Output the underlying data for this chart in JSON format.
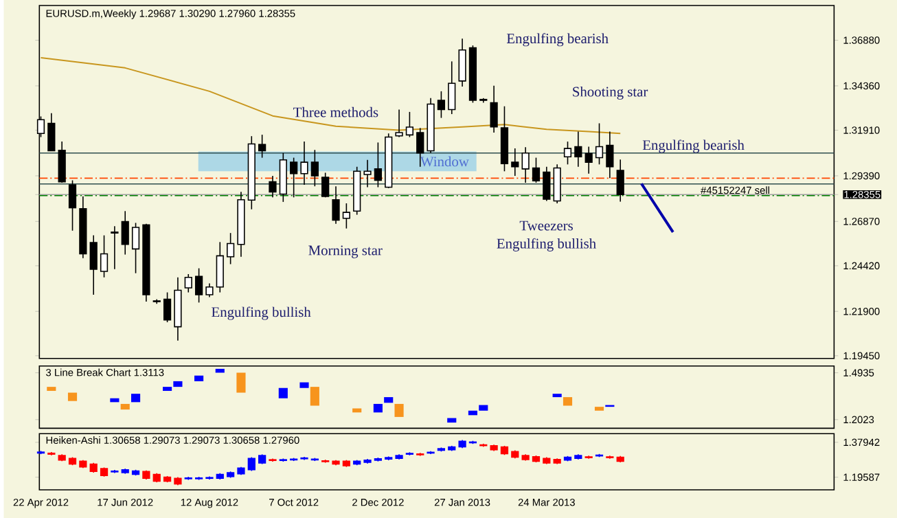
{
  "chart_data": [
    {
      "type": "candlestick",
      "title": "EURUSD.m,Weekly  1.29687 1.30290 1.27960 1.28355",
      "color": "#000000",
      "x": [
        "2012-04-22",
        "2012-04-29",
        "2012-05-06",
        "2012-05-13",
        "2012-05-20",
        "2012-05-27",
        "2012-06-03",
        "2012-06-10",
        "2012-06-17",
        "2012-06-24",
        "2012-07-01",
        "2012-07-08",
        "2012-07-15",
        "2012-07-22",
        "2012-07-29",
        "2012-08-05",
        "2012-08-12",
        "2012-08-19",
        "2012-08-26",
        "2012-09-02",
        "2012-09-09",
        "2012-09-16",
        "2012-09-23",
        "2012-09-30",
        "2012-10-07",
        "2012-10-14",
        "2012-10-21",
        "2012-10-28",
        "2012-11-04",
        "2012-11-11",
        "2012-11-18",
        "2012-11-25",
        "2012-12-02",
        "2012-12-09",
        "2012-12-16",
        "2012-12-23",
        "2012-12-30",
        "2013-01-06",
        "2013-01-13",
        "2013-01-20",
        "2013-01-27",
        "2013-02-03",
        "2013-02-10",
        "2013-02-17",
        "2013-02-24",
        "2013-03-03",
        "2013-03-10",
        "2013-03-17",
        "2013-03-24",
        "2013-03-31",
        "2013-04-07",
        "2013-04-14",
        "2013-04-21",
        "2013-04-28",
        "2013-05-05",
        "2013-05-12"
      ],
      "ohlc": [
        [
          1.3173,
          1.3267,
          1.3153,
          1.3249
        ],
        [
          1.3229,
          1.3285,
          1.3077,
          1.3077
        ],
        [
          1.308,
          1.3128,
          1.2901,
          1.2906
        ],
        [
          1.2889,
          1.2914,
          1.2636,
          1.2762
        ],
        [
          1.2757,
          1.2826,
          1.2484,
          1.2508
        ],
        [
          1.257,
          1.261,
          1.2282,
          1.2423
        ],
        [
          1.2411,
          1.261,
          1.2378,
          1.2508
        ],
        [
          1.2623,
          1.2661,
          1.2423,
          1.2628
        ],
        [
          1.2686,
          1.2744,
          1.2504,
          1.256
        ],
        [
          1.2535,
          1.2679,
          1.2401,
          1.2654
        ],
        [
          1.2668,
          1.2674,
          1.2244,
          1.2282
        ],
        [
          1.2244,
          1.2257,
          1.2232,
          1.2248
        ],
        [
          1.2257,
          1.2295,
          1.213,
          1.2143
        ],
        [
          1.2105,
          1.2378,
          1.2029,
          1.2307
        ],
        [
          1.232,
          1.2396,
          1.2295,
          1.2378
        ],
        [
          1.2383,
          1.2428,
          1.2239,
          1.2282
        ],
        [
          1.2282,
          1.2345,
          1.2269,
          1.2325
        ],
        [
          1.2325,
          1.2573,
          1.2295,
          1.2497
        ],
        [
          1.2492,
          1.2623,
          1.2451,
          1.2565
        ],
        [
          1.256,
          1.285,
          1.2492,
          1.2807
        ],
        [
          1.2805,
          1.3158,
          1.2754,
          1.3115
        ],
        [
          1.3112,
          1.3166,
          1.3039,
          1.3077
        ],
        [
          1.2906,
          1.2939,
          1.282,
          1.285
        ],
        [
          1.2838,
          1.3065,
          1.2795,
          1.3027
        ],
        [
          1.3014,
          1.3039,
          1.282,
          1.2951
        ],
        [
          1.2951,
          1.3128,
          1.2889,
          1.3014
        ],
        [
          1.3014,
          1.3082,
          1.2881,
          1.2939
        ],
        [
          1.2931,
          1.2956,
          1.282,
          1.2825
        ],
        [
          1.2807,
          1.2881,
          1.2674,
          1.2694
        ],
        [
          1.2704,
          1.2787,
          1.2648,
          1.2737
        ],
        [
          1.2744,
          1.2989,
          1.2724,
          1.2964
        ],
        [
          1.2946,
          1.3027,
          1.2876,
          1.2964
        ],
        [
          1.2977,
          1.3123,
          1.2876,
          1.2914
        ],
        [
          1.2876,
          1.3173,
          1.2871,
          1.3153
        ],
        [
          1.316,
          1.3305,
          1.3153,
          1.3178
        ],
        [
          1.3165,
          1.3292,
          1.3153,
          1.3208
        ],
        [
          1.3178,
          1.3203,
          1.2989,
          1.3065
        ],
        [
          1.3077,
          1.3368,
          1.3065,
          1.3335
        ],
        [
          1.3356,
          1.3406,
          1.3259,
          1.3305
        ],
        [
          1.3305,
          1.3571,
          1.328,
          1.345
        ],
        [
          1.3463,
          1.3697,
          1.3432,
          1.3634
        ],
        [
          1.3646,
          1.3659,
          1.3343,
          1.3356
        ],
        [
          1.3361,
          1.3368,
          1.3343,
          1.3356
        ],
        [
          1.3343,
          1.3437,
          1.3178,
          1.3209
        ],
        [
          1.3204,
          1.3323,
          1.2964,
          1.3006
        ],
        [
          1.3014,
          1.309,
          1.2939,
          1.2989
        ],
        [
          1.2977,
          1.3097,
          1.2901,
          1.3065
        ],
        [
          1.2982,
          1.3039,
          1.2901,
          1.2911
        ],
        [
          1.2959,
          1.2989,
          1.28,
          1.281
        ],
        [
          1.28,
          1.3002,
          1.2787,
          1.2982
        ],
        [
          1.3044,
          1.3128,
          1.3002,
          1.309
        ],
        [
          1.31,
          1.3183,
          1.2989,
          1.3044
        ],
        [
          1.3062,
          1.31,
          1.2951,
          1.3014
        ],
        [
          1.3039,
          1.3229,
          1.3002,
          1.31
        ],
        [
          1.3107,
          1.3183,
          1.2926,
          1.2989
        ],
        [
          1.29687,
          1.3029,
          1.2796,
          1.28355
        ]
      ],
      "series": [
        {
          "type": "line",
          "color": "#c8961e",
          "x": [
            "2012-04-22",
            "2012-06-17",
            "2012-08-12",
            "2012-09-23",
            "2012-11-04",
            "2012-12-16",
            "2013-01-27",
            "2013-02-24",
            "2013-03-24",
            "2013-04-21",
            "2013-05-12"
          ],
          "values": [
            1.3591,
            1.3535,
            1.3406,
            1.327,
            1.3213,
            1.3191,
            1.3209,
            1.3222,
            1.3196,
            1.3183,
            1.3173
          ]
        },
        {
          "type": "line",
          "color": "#0000aa",
          "x": [
            "2013-05-26",
            "2013-06-16"
          ],
          "values": [
            1.2896,
            1.2628
          ]
        }
      ],
      "xlim": [
        "2012-04-21",
        "2013-10-01"
      ],
      "ylim": [
        1.193,
        1.388
      ],
      "yticks": [
        {
          "value": 1.3688,
          "label": "1.36880"
        },
        {
          "value": 1.3436,
          "label": "1.34360"
        },
        {
          "value": 1.3191,
          "label": "1.31910"
        },
        {
          "value": 1.2939,
          "label": "1.29390"
        },
        1.28355,
        {
          "value": 1.2687,
          "label": "1.26870"
        },
        {
          "value": 1.2442,
          "label": "1.24420"
        },
        {
          "value": 1.219,
          "label": "1.21900"
        },
        {
          "value": 1.1945,
          "label": "1.19450"
        }
      ],
      "tick_labels": "y",
      "bands": [
        {
          "axis": "y",
          "from": 1.2964,
          "to": 1.3073,
          "label": "Window",
          "color": "#add8e6"
        }
      ],
      "ref_lines": [
        {
          "axis": "y",
          "value": 1.3065,
          "color": "#2f4f4f"
        },
        {
          "axis": "y",
          "value": 1.2894,
          "color": "#2f4f4f"
        },
        {
          "axis": "y",
          "value": 1.2926,
          "color": "#ff4500",
          "line_style": "dashed"
        },
        {
          "axis": "y",
          "value": 1.283,
          "color": "#008000",
          "line_style": "dashed",
          "label": "#45152247 sell"
        },
        {
          "axis": "y",
          "value": 1.28355,
          "color": "#a0a0a0"
        }
      ],
      "annotations": [
        "Engulfing bullish",
        "Morning star",
        "Three methods",
        "Engulfing bearish",
        "Shooting star",
        "Engulfing bearish",
        "Tweezers",
        "Engulfing bullish"
      ]
    },
    {
      "type": "bar",
      "title": "3 Line Break Chart 1.3113",
      "x": [
        "2012-04-29",
        "2012-05-13",
        "2012-06-10",
        "2012-06-17",
        "2012-06-24",
        "2012-07-15",
        "2012-07-22",
        "2012-08-05",
        "2012-08-19",
        "2012-09-02",
        "2012-09-30",
        "2012-10-14",
        "2012-10-21",
        "2012-11-18",
        "2012-12-02",
        "2012-12-09",
        "2012-12-16",
        "2013-01-20",
        "2013-02-03",
        "2013-02-10",
        "2013-03-31",
        "2013-04-07",
        "2013-04-28",
        "2013-05-05"
      ],
      "base": [
        1.381,
        1.318,
        1.311,
        1.265,
        1.311,
        1.381,
        1.406,
        1.441,
        1.494,
        1.37,
        1.335,
        1.399,
        1.289,
        1.247,
        1.247,
        1.307,
        1.219,
        1.184,
        1.23,
        1.258,
        1.342,
        1.289,
        1.258,
        1.282
      ],
      "values": [
        0.025,
        0.052,
        0.024,
        0.035,
        0.052,
        0.025,
        0.035,
        0.035,
        0.024,
        0.124,
        0.064,
        0.035,
        0.117,
        0.025,
        0.053,
        0.035,
        0.081,
        0.028,
        0.028,
        0.035,
        0.021,
        0.053,
        0.024,
        0.011
      ],
      "colors": [
        "#f7941d",
        "#f7941d",
        "#0000ff",
        "#f7941d",
        "#0000ff",
        "#0000ff",
        "#0000ff",
        "#0000ff",
        "#0000ff",
        "#f7941d",
        "#0000ff",
        "#0000ff",
        "#f7941d",
        "#f7941d",
        "#0000ff",
        "#0000ff",
        "#f7941d",
        "#0000ff",
        "#0000ff",
        "#0000ff",
        "#0000ff",
        "#f7941d",
        "#f7941d",
        "#0000ff"
      ],
      "xlim": [
        "2012-04-21",
        "2013-10-01"
      ],
      "ylim": [
        1.1488,
        1.5357
      ],
      "yticks": [
        1.4935,
        1.2023
      ],
      "tick_labels": "y"
    },
    {
      "type": "candlestick",
      "title": "Heiken-Ashi 1.30658 1.29073 1.29073 1.30658 1.27960",
      "x": [
        "2012-04-22",
        "2012-04-29",
        "2012-05-06",
        "2012-05-13",
        "2012-05-20",
        "2012-05-27",
        "2012-06-03",
        "2012-06-10",
        "2012-06-17",
        "2012-06-24",
        "2012-07-01",
        "2012-07-08",
        "2012-07-15",
        "2012-07-22",
        "2012-07-29",
        "2012-08-05",
        "2012-08-12",
        "2012-08-19",
        "2012-08-26",
        "2012-09-02",
        "2012-09-09",
        "2012-09-16",
        "2012-09-23",
        "2012-09-30",
        "2012-10-07",
        "2012-10-14",
        "2012-10-21",
        "2012-10-28",
        "2012-11-04",
        "2012-11-11",
        "2012-11-18",
        "2012-11-25",
        "2012-12-02",
        "2012-12-09",
        "2012-12-16",
        "2012-12-23",
        "2012-12-30",
        "2013-01-06",
        "2013-01-13",
        "2013-01-20",
        "2013-01-27",
        "2013-02-03",
        "2013-02-10",
        "2013-02-17",
        "2013-02-24",
        "2013-03-03",
        "2013-03-10",
        "2013-03-17",
        "2013-03-24",
        "2013-03-31",
        "2013-04-07",
        "2013-04-14",
        "2013-04-21",
        "2013-04-28",
        "2013-05-05",
        "2013-05-12"
      ],
      "ohlc": [
        [
          1.323,
          1.334,
          1.317,
          1.328
        ],
        [
          1.322,
          1.328,
          1.311,
          1.317
        ],
        [
          1.31,
          1.316,
          1.28,
          1.286
        ],
        [
          1.295,
          1.301,
          1.259,
          1.265
        ],
        [
          1.28,
          1.286,
          1.244,
          1.25
        ],
        [
          1.265,
          1.271,
          1.22,
          1.226
        ],
        [
          1.241,
          1.247,
          1.199,
          1.205
        ],
        [
          1.224,
          1.234,
          1.218,
          1.228
        ],
        [
          1.22,
          1.241,
          1.214,
          1.235
        ],
        [
          1.211,
          1.235,
          1.205,
          1.229
        ],
        [
          1.226,
          1.232,
          1.184,
          1.19
        ],
        [
          1.211,
          1.217,
          1.169,
          1.175
        ],
        [
          1.196,
          1.202,
          1.169,
          1.175
        ],
        [
          1.19,
          1.196,
          1.154,
          1.16
        ],
        [
          1.188,
          1.198,
          1.182,
          1.192
        ],
        [
          1.188,
          1.198,
          1.182,
          1.192
        ],
        [
          1.19,
          1.2,
          1.184,
          1.194
        ],
        [
          1.19,
          1.217,
          1.184,
          1.211
        ],
        [
          1.199,
          1.226,
          1.193,
          1.22
        ],
        [
          1.214,
          1.25,
          1.208,
          1.244
        ],
        [
          1.235,
          1.301,
          1.229,
          1.295
        ],
        [
          1.271,
          1.316,
          1.265,
          1.31
        ],
        [
          1.288,
          1.294,
          1.278,
          1.284
        ],
        [
          1.284,
          1.294,
          1.278,
          1.288
        ],
        [
          1.287,
          1.297,
          1.281,
          1.291
        ],
        [
          1.293,
          1.303,
          1.287,
          1.297
        ],
        [
          1.287,
          1.297,
          1.281,
          1.291
        ],
        [
          1.282,
          1.288,
          1.272,
          1.278
        ],
        [
          1.28,
          1.286,
          1.259,
          1.265
        ],
        [
          1.28,
          1.286,
          1.25,
          1.256
        ],
        [
          1.265,
          1.286,
          1.259,
          1.28
        ],
        [
          1.274,
          1.292,
          1.268,
          1.286
        ],
        [
          1.285,
          1.299,
          1.279,
          1.293
        ],
        [
          1.291,
          1.305,
          1.285,
          1.299
        ],
        [
          1.295,
          1.316,
          1.289,
          1.31
        ],
        [
          1.317,
          1.327,
          1.311,
          1.321
        ],
        [
          1.318,
          1.324,
          1.308,
          1.314
        ],
        [
          1.323,
          1.333,
          1.317,
          1.327
        ],
        [
          1.337,
          1.352,
          1.331,
          1.346
        ],
        [
          1.34,
          1.361,
          1.334,
          1.355
        ],
        [
          1.355,
          1.391,
          1.349,
          1.385
        ],
        [
          1.377,
          1.387,
          1.371,
          1.381
        ],
        [
          1.366,
          1.372,
          1.356,
          1.362
        ],
        [
          1.361,
          1.367,
          1.334,
          1.34
        ],
        [
          1.355,
          1.361,
          1.313,
          1.319
        ],
        [
          1.331,
          1.337,
          1.295,
          1.301
        ],
        [
          1.31,
          1.316,
          1.283,
          1.289
        ],
        [
          1.304,
          1.31,
          1.274,
          1.28
        ],
        [
          1.295,
          1.301,
          1.265,
          1.271
        ],
        [
          1.289,
          1.295,
          1.265,
          1.271
        ],
        [
          1.286,
          1.307,
          1.28,
          1.301
        ],
        [
          1.295,
          1.316,
          1.289,
          1.31
        ],
        [
          1.303,
          1.309,
          1.293,
          1.299
        ],
        [
          1.308,
          1.318,
          1.302,
          1.312
        ],
        [
          1.303,
          1.309,
          1.293,
          1.299
        ],
        [
          1.301,
          1.307,
          1.274,
          1.28
        ]
      ],
      "colors": [
        "#0000ff",
        "#ff0000",
        "#ff0000",
        "#ff0000",
        "#ff0000",
        "#ff0000",
        "#ff0000",
        "#0000ff",
        "#0000ff",
        "#0000ff",
        "#ff0000",
        "#ff0000",
        "#ff0000",
        "#ff0000",
        "#0000ff",
        "#0000ff",
        "#0000ff",
        "#0000ff",
        "#0000ff",
        "#0000ff",
        "#0000ff",
        "#0000ff",
        "#ff0000",
        "#0000ff",
        "#0000ff",
        "#0000ff",
        "#0000ff",
        "#ff0000",
        "#ff0000",
        "#ff0000",
        "#0000ff",
        "#0000ff",
        "#0000ff",
        "#0000ff",
        "#0000ff",
        "#0000ff",
        "#ff0000",
        "#0000ff",
        "#0000ff",
        "#0000ff",
        "#0000ff",
        "#0000ff",
        "#ff0000",
        "#ff0000",
        "#ff0000",
        "#ff0000",
        "#ff0000",
        "#ff0000",
        "#ff0000",
        "#ff0000",
        "#0000ff",
        "#0000ff",
        "#ff0000",
        "#0000ff",
        "#ff0000",
        "#ff0000"
      ],
      "xlim": [
        "2012-04-21",
        "2013-10-01"
      ],
      "ylim": [
        1.1297,
        1.4246
      ],
      "yticks": [
        1.37942,
        1.19587
      ],
      "xticks": [
        {
          "value": "2012-04-22",
          "label": "22 Apr 2012"
        },
        {
          "value": "2012-06-17",
          "label": "17 Jun 2012"
        },
        {
          "value": "2012-08-12",
          "label": "12 Aug 2012"
        },
        {
          "value": "2012-10-07",
          "label": "7 Oct 2012"
        },
        {
          "value": "2012-12-02",
          "label": "2 Dec 2012"
        },
        {
          "value": "2013-01-27",
          "label": "27 Jan 2013"
        },
        {
          "value": "2013-03-24",
          "label": "24 Mar 2013"
        }
      ]
    }
  ]
}
